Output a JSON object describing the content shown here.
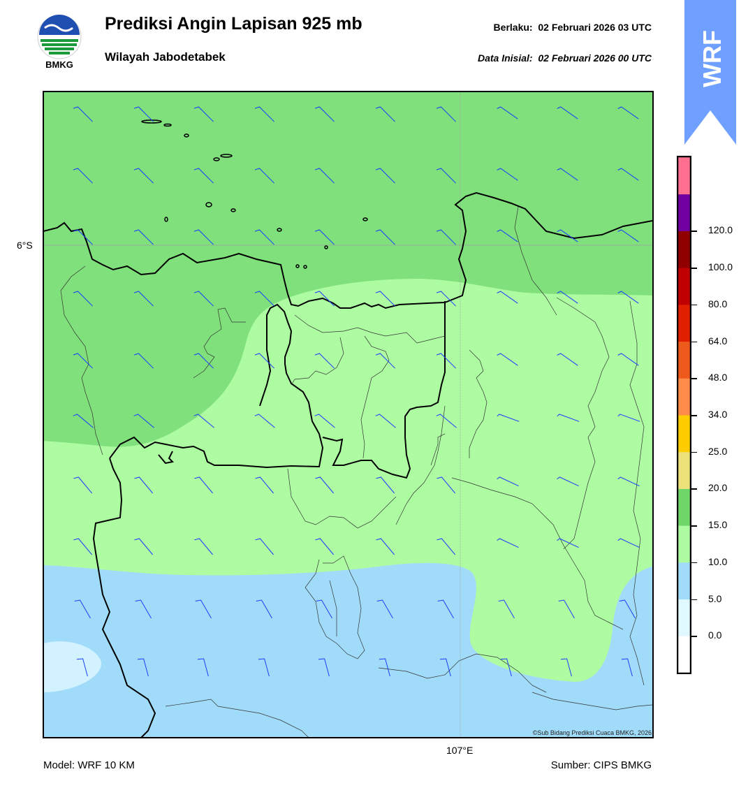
{
  "header": {
    "title": "Prediksi Angin Lapisan 925 mb",
    "subtitle": "Wilayah Jabodetabek",
    "valid_label": "Berlaku:",
    "valid_time": "02 Februari 2026 03 UTC",
    "init_label": "Data Inisial:",
    "init_time": "02 Februari 2026 00 UTC"
  },
  "logo": {
    "text": "BMKG",
    "icon": "bmkg-logo-icon"
  },
  "badge": {
    "text": "WRF",
    "color": "#6fa0ff"
  },
  "map": {
    "lat_label": "6°S",
    "lon_label": "107°E",
    "copyright": "©Sub Bidang Prediksi Cuaca BMKG, 2026",
    "barb_color": "#1a3cff"
  },
  "colorbar": {
    "colors": [
      "#ffffff",
      "#e0f8ff",
      "#a0dcfa",
      "#adfca2",
      "#6fd76a",
      "#ede27a",
      "#ffcc00",
      "#ff8c4a",
      "#ee5a1c",
      "#e02000",
      "#c00000",
      "#900000",
      "#7000a0",
      "#ff6f8f"
    ],
    "labels": [
      "0.0",
      "5.0",
      "10.0",
      "15.0",
      "20.0",
      "25.0",
      "34.0",
      "48.0",
      "64.0",
      "80.0",
      "100.0",
      "120.0"
    ]
  },
  "footer": {
    "model": "Model: WRF 10 KM",
    "source": "Sumber: CIPS BMKG"
  }
}
